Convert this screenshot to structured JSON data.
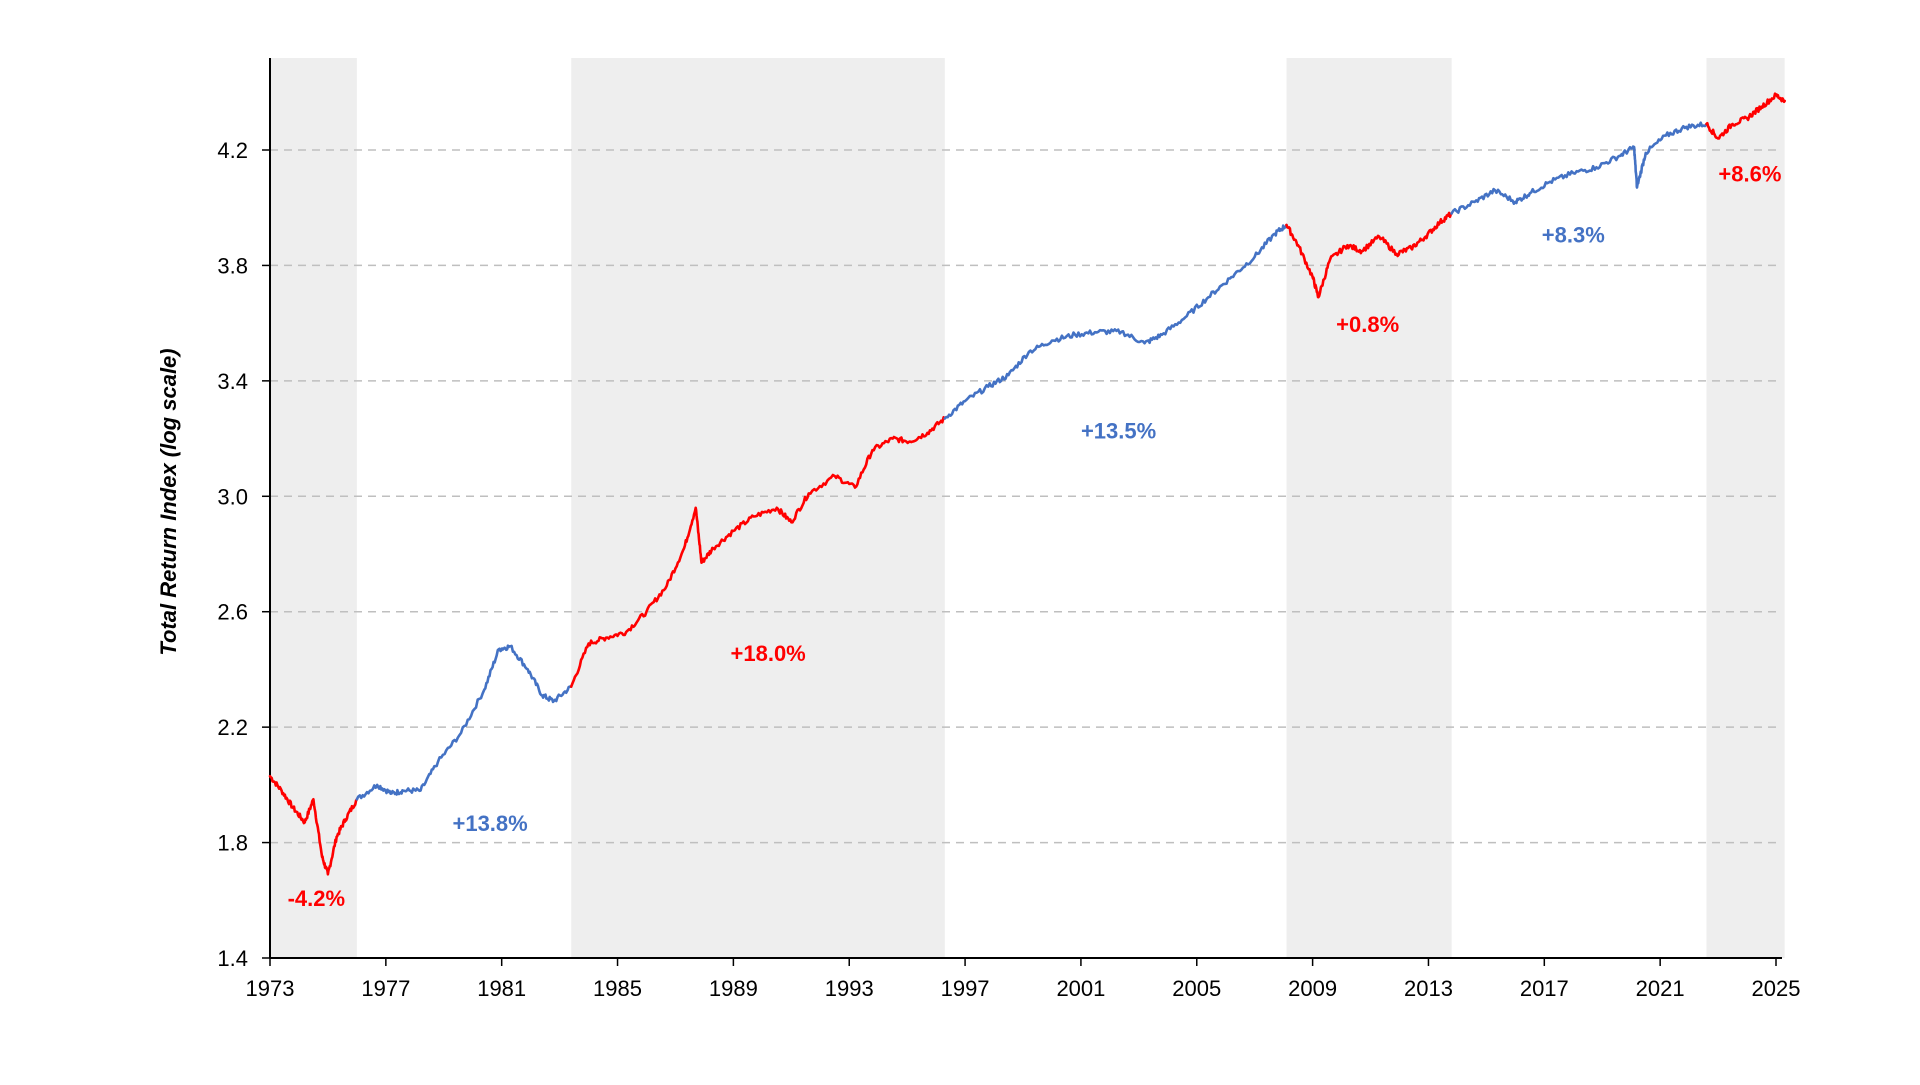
{
  "chart_data": {
    "type": "line",
    "title": "",
    "xlabel": "",
    "ylabel": "Total Return Index (log scale)",
    "xlim": [
      1973,
      2025.3
    ],
    "ylim": [
      1.4,
      4.5
    ],
    "grid": "horizontal dashed",
    "x_ticks": [
      "1973",
      "1977",
      "1981",
      "1985",
      "1989",
      "1993",
      "1997",
      "2001",
      "2005",
      "2009",
      "2013",
      "2017",
      "2021",
      "2025"
    ],
    "y_ticks": [
      "1.4",
      "1.8",
      "2.2",
      "2.6",
      "3.0",
      "3.4",
      "3.8",
      "4.2"
    ],
    "shaded_periods": [
      [
        1973,
        1976.0
      ],
      [
        1983.4,
        1996.3
      ],
      [
        2008.1,
        2013.8
      ],
      [
        2022.6,
        2025.3
      ]
    ],
    "colors": {
      "positive_regime": "#4472C4",
      "shaded_regime": "#FF0000",
      "shade": "#EEEEEE",
      "grid": "#BFBFBF"
    },
    "series": [
      {
        "color": "#FF0000",
        "x": [
          1973.0,
          1973.4,
          1973.8,
          1974.2,
          1974.5,
          1974.8,
          1975.0,
          1975.3,
          1975.6,
          1976.0
        ],
        "y": [
          2.03,
          1.98,
          1.92,
          1.87,
          1.95,
          1.75,
          1.69,
          1.82,
          1.88,
          1.95
        ]
      },
      {
        "color": "#4472C4",
        "x": [
          1976.0,
          1976.7,
          1977.2,
          1977.6,
          1978.2,
          1978.8,
          1979.6,
          1980.4,
          1980.9,
          1981.3,
          1981.9,
          1982.4,
          1982.8,
          1983.4
        ],
        "y": [
          1.95,
          2.0,
          1.97,
          1.98,
          1.98,
          2.08,
          2.18,
          2.33,
          2.47,
          2.48,
          2.4,
          2.31,
          2.29,
          2.34
        ]
      },
      {
        "color": "#FF0000",
        "x": [
          1983.4,
          1984.0,
          1984.6,
          1985.3,
          1986.0,
          1986.7,
          1987.3,
          1987.7,
          1987.9,
          1988.3,
          1989.0,
          1989.7,
          1990.5,
          1991.0,
          1991.6,
          1992.5,
          1993.2,
          1993.8,
          1994.5,
          1995.1,
          1995.7,
          1996.3
        ],
        "y": [
          2.34,
          2.49,
          2.51,
          2.53,
          2.6,
          2.69,
          2.82,
          2.96,
          2.77,
          2.82,
          2.88,
          2.93,
          2.96,
          2.91,
          3.01,
          3.07,
          3.03,
          3.16,
          3.2,
          3.19,
          3.22,
          3.27
        ]
      },
      {
        "color": "#4472C4",
        "x": [
          1996.3,
          1997.0,
          1997.8,
          1998.5,
          1999.2,
          2000.0,
          2000.8,
          2001.6,
          2002.4,
          2003.2,
          2003.8,
          2004.6,
          2005.4,
          2006.2,
          2007.0,
          2007.7,
          2008.1
        ],
        "y": [
          3.27,
          3.33,
          3.38,
          3.42,
          3.5,
          3.54,
          3.56,
          3.57,
          3.57,
          3.53,
          3.56,
          3.62,
          3.69,
          3.76,
          3.83,
          3.91,
          3.94
        ]
      },
      {
        "color": "#FF0000",
        "x": [
          2008.1,
          2008.5,
          2009.0,
          2009.2,
          2009.6,
          2010.2,
          2010.7,
          2011.3,
          2011.9,
          2012.4,
          2012.9,
          2013.4,
          2013.8
        ],
        "y": [
          3.94,
          3.87,
          3.76,
          3.69,
          3.82,
          3.87,
          3.85,
          3.9,
          3.84,
          3.86,
          3.9,
          3.95,
          3.98
        ]
      },
      {
        "color": "#4472C4",
        "x": [
          2013.8,
          2014.6,
          2015.3,
          2016.0,
          2016.5,
          2017.2,
          2018.0,
          2018.8,
          2019.6,
          2020.1,
          2020.2,
          2020.5,
          2021.2,
          2021.9,
          2022.6
        ],
        "y": [
          3.98,
          4.02,
          4.06,
          4.02,
          4.05,
          4.09,
          4.12,
          4.14,
          4.18,
          4.21,
          4.07,
          4.19,
          4.25,
          4.28,
          4.29
        ]
      },
      {
        "color": "#FF0000",
        "x": [
          2022.6,
          2023.0,
          2023.5,
          2024.0,
          2024.5,
          2025.0,
          2025.3
        ],
        "y": [
          4.29,
          4.24,
          4.29,
          4.31,
          4.35,
          4.39,
          4.37
        ]
      }
    ],
    "annotations": [
      {
        "text": "-4.2%",
        "x": 1974.6,
        "y": 1.58,
        "color": "#FF0000"
      },
      {
        "text": "+13.8%",
        "x": 1980.6,
        "y": 1.84,
        "color": "#4472C4"
      },
      {
        "text": "+18.0%",
        "x": 1990.2,
        "y": 2.43,
        "color": "#FF0000"
      },
      {
        "text": "+13.5%",
        "x": 2002.3,
        "y": 3.2,
        "color": "#4472C4"
      },
      {
        "text": "+0.8%",
        "x": 2010.9,
        "y": 3.57,
        "color": "#FF0000"
      },
      {
        "text": "+8.3%",
        "x": 2018.0,
        "y": 3.88,
        "color": "#4472C4"
      },
      {
        "text": "+8.6%",
        "x": 2024.1,
        "y": 4.09,
        "color": "#FF0000"
      }
    ]
  }
}
